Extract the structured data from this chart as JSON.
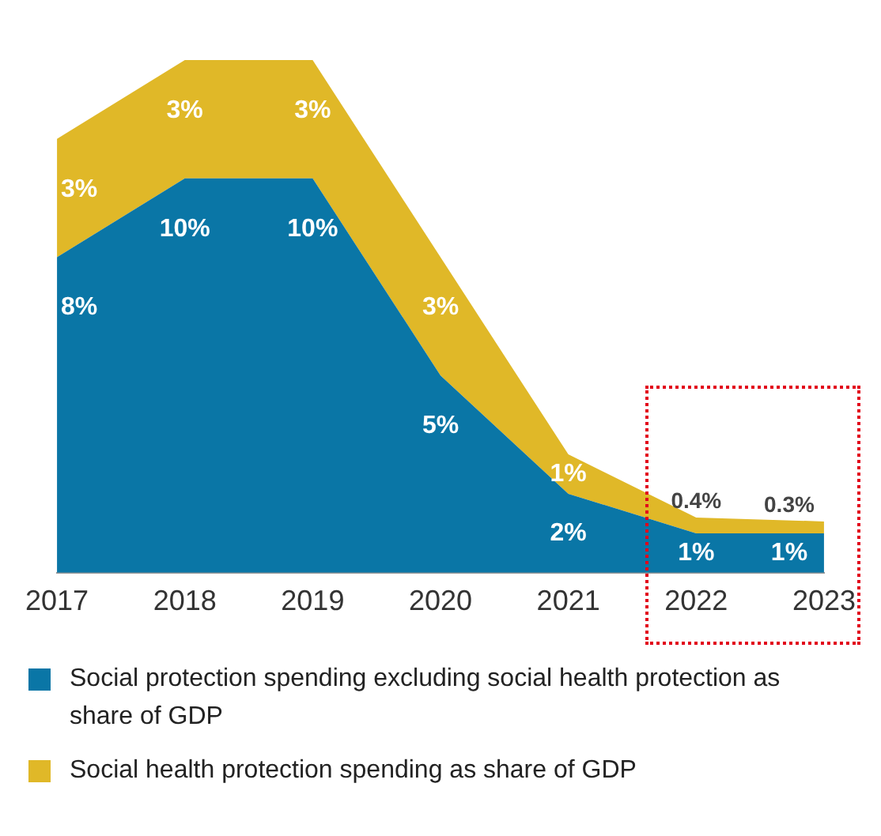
{
  "chart_data": {
    "type": "area",
    "stacked": true,
    "categories": [
      "2017",
      "2018",
      "2019",
      "2020",
      "2021",
      "2022",
      "2023"
    ],
    "series": [
      {
        "name": "Social protection spending excluding social health protection as share of GDP",
        "color": "#0a76a6",
        "values": [
          8,
          10,
          10,
          5,
          2,
          1,
          1
        ],
        "value_labels": [
          "8%",
          "10%",
          "10%",
          "5%",
          "2%",
          "1%",
          "1%"
        ]
      },
      {
        "name": "Social health protection spending as share of GDP",
        "color": "#e0b828",
        "values": [
          3,
          3,
          3,
          3,
          1,
          0.4,
          0.3
        ],
        "value_labels": [
          "3%",
          "3%",
          "3%",
          "3%",
          "1%",
          "0.4%",
          "0.3%"
        ]
      }
    ],
    "legend": "bottom",
    "grid": false
  }
}
